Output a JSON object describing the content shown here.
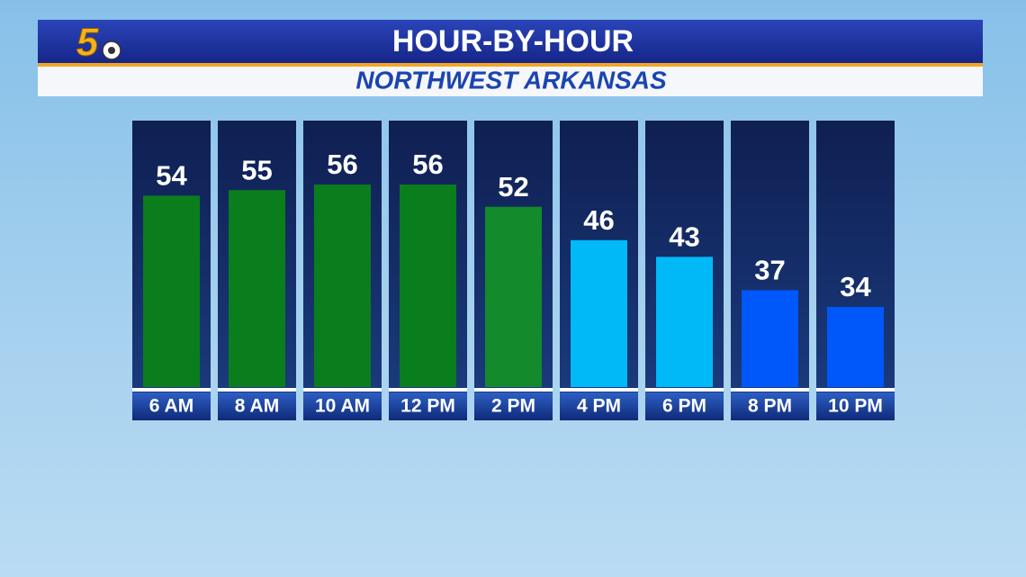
{
  "logo": "5",
  "chart_data": {
    "type": "bar",
    "title": "HOUR-BY-HOUR",
    "subtitle": "NORTHWEST ARKANSAS",
    "categories": [
      "6 AM",
      "8 AM",
      "10 AM",
      "12 PM",
      "2 PM",
      "4 PM",
      "6 PM",
      "8 PM",
      "10 PM"
    ],
    "values": [
      54,
      55,
      56,
      56,
      52,
      46,
      43,
      37,
      34
    ],
    "colors": [
      "#0a7d1c",
      "#0a7d1c",
      "#0a7d1c",
      "#0a7d1c",
      "#138a2c",
      "#00b9f6",
      "#00b9f6",
      "#0058fa",
      "#0058fa"
    ]
  }
}
